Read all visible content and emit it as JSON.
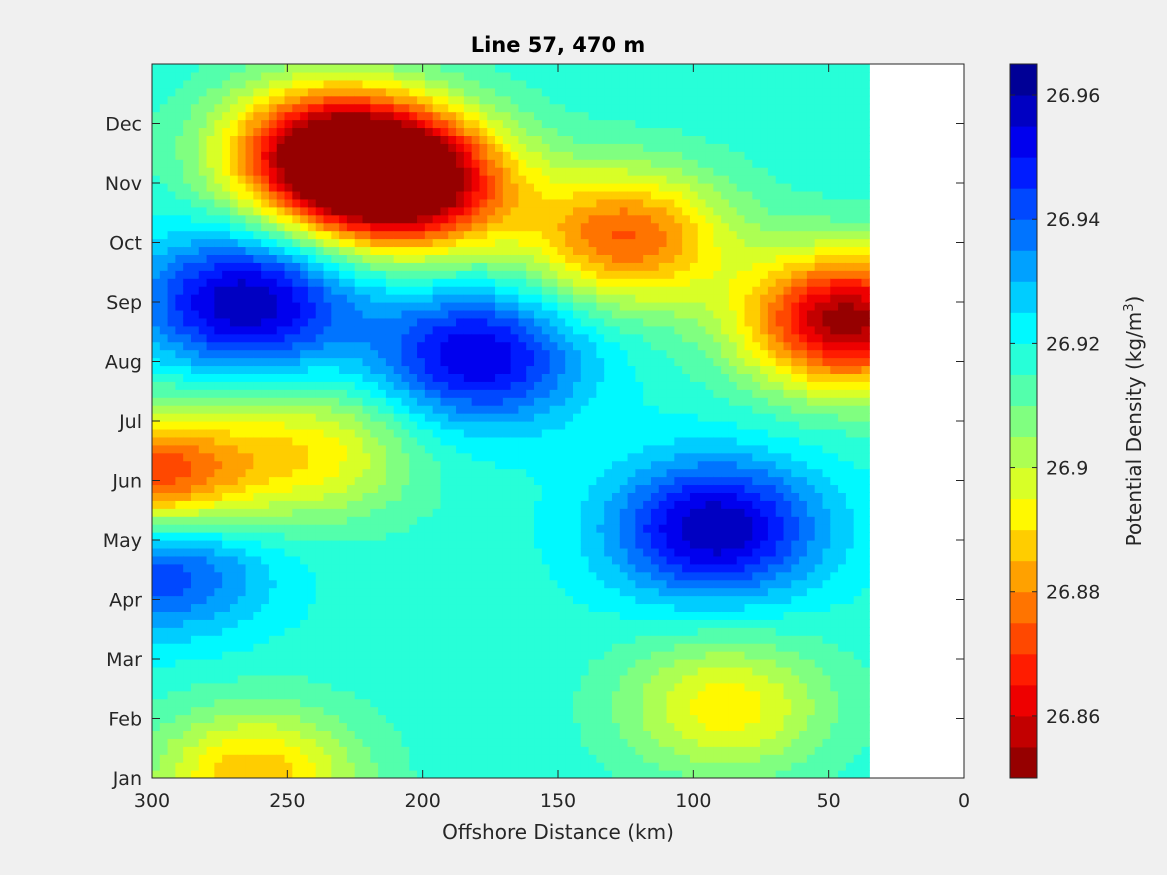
{
  "chart_data": {
    "type": "heatmap",
    "title": "Line 57, 470 m",
    "xlabel": "Offshore Distance (km)",
    "ylabel": "",
    "xlim": [
      300,
      0
    ],
    "x_reversed": true,
    "x_ticks": [
      "300",
      "250",
      "200",
      "150",
      "100",
      "50",
      "0"
    ],
    "y_ticks": [
      "Jan",
      "Feb",
      "Mar",
      "Apr",
      "May",
      "Jun",
      "Jul",
      "Aug",
      "Sep",
      "Oct",
      "Nov",
      "Dec"
    ],
    "data_x_range_km": [
      300,
      35
    ],
    "colorbar": {
      "label": "Potential Density (kg/m",
      "label_sup": "3",
      "label_end": ")",
      "range": [
        26.85,
        26.965
      ],
      "ticks": [
        "26.86",
        "26.88",
        "26.9",
        "26.92",
        "26.94",
        "26.96"
      ],
      "colormap": "jet",
      "levels": 23
    },
    "features": [
      {
        "kind": "high",
        "x_km": 265,
        "month": 8.0,
        "value": 26.96
      },
      {
        "kind": "high",
        "x_km": 180,
        "month": 7.1,
        "value": 26.955
      },
      {
        "kind": "high",
        "x_km": 92,
        "month": 4.2,
        "value": 26.96
      },
      {
        "kind": "high",
        "x_km": 297,
        "month": 3.7,
        "value": 26.952
      },
      {
        "kind": "low",
        "x_km": 205,
        "month": 10.0,
        "value": 26.85
      },
      {
        "kind": "low",
        "x_km": 235,
        "month": 10.5,
        "value": 26.852
      },
      {
        "kind": "low",
        "x_km": 43,
        "month": 7.7,
        "value": 26.852
      },
      {
        "kind": "low",
        "x_km": 300,
        "month": 5.0,
        "value": 26.866
      },
      {
        "kind": "low",
        "x_km": 125,
        "month": 9.1,
        "value": 26.875
      },
      {
        "kind": "mid",
        "x_km": 240,
        "month": 5.5,
        "value": 26.893
      },
      {
        "kind": "mid",
        "x_km": 88,
        "month": 1.2,
        "value": 26.892
      },
      {
        "kind": "mid",
        "x_km": 262,
        "month": 0.0,
        "value": 26.885
      }
    ]
  }
}
